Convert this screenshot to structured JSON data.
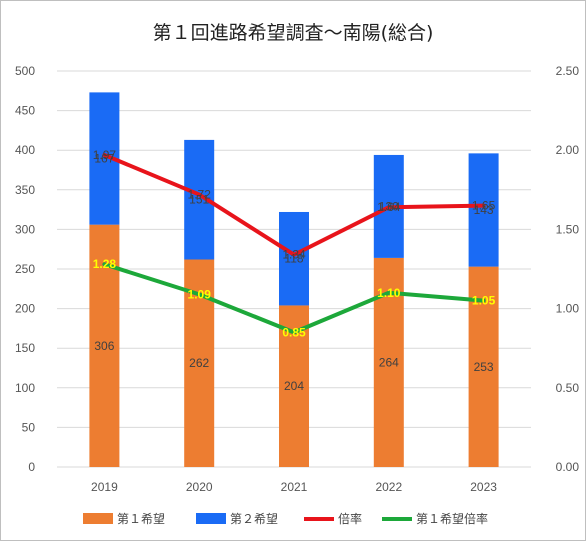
{
  "chart_data": {
    "type": "bar",
    "title": "第１回進路希望調査～南陽(総合)",
    "categories": [
      "2019",
      "2020",
      "2021",
      "2022",
      "2023"
    ],
    "stacked": true,
    "y_left": {
      "range": [
        0,
        500
      ],
      "ticks": [
        "0",
        "50",
        "100",
        "150",
        "200",
        "250",
        "300",
        "350",
        "400",
        "450",
        "500"
      ]
    },
    "y_right": {
      "range": [
        0,
        2.5
      ],
      "ticks": [
        "0.00",
        "0.50",
        "1.00",
        "1.50",
        "2.00",
        "2.50"
      ]
    },
    "grid": true,
    "legend_position": "bottom",
    "series": [
      {
        "name": "第１希望",
        "kind": "bar",
        "axis": "left",
        "color": "#ED7D31",
        "values": [
          306,
          262,
          204,
          264,
          253
        ],
        "labels": [
          "306",
          "262",
          "204",
          "264",
          "253"
        ]
      },
      {
        "name": "第２希望",
        "kind": "bar",
        "axis": "left",
        "color": "#1A6BF5",
        "values": [
          167,
          151,
          118,
          130,
          143
        ],
        "labels": [
          "167",
          "151",
          "118",
          "130",
          "143"
        ]
      },
      {
        "name": "倍率",
        "kind": "line",
        "axis": "right",
        "color": "#E8141B",
        "values": [
          1.97,
          1.72,
          1.34,
          1.64,
          1.65
        ],
        "labels": [
          "1.97",
          "1.72",
          "1.34",
          "1.64",
          "1.65"
        ]
      },
      {
        "name": "第１希望倍率",
        "kind": "line",
        "axis": "right",
        "color": "#1DA83A",
        "values": [
          1.28,
          1.09,
          0.85,
          1.1,
          1.05
        ],
        "labels": [
          "1.28",
          "1.09",
          "0.85",
          "1.10",
          "1.05"
        ]
      }
    ]
  }
}
